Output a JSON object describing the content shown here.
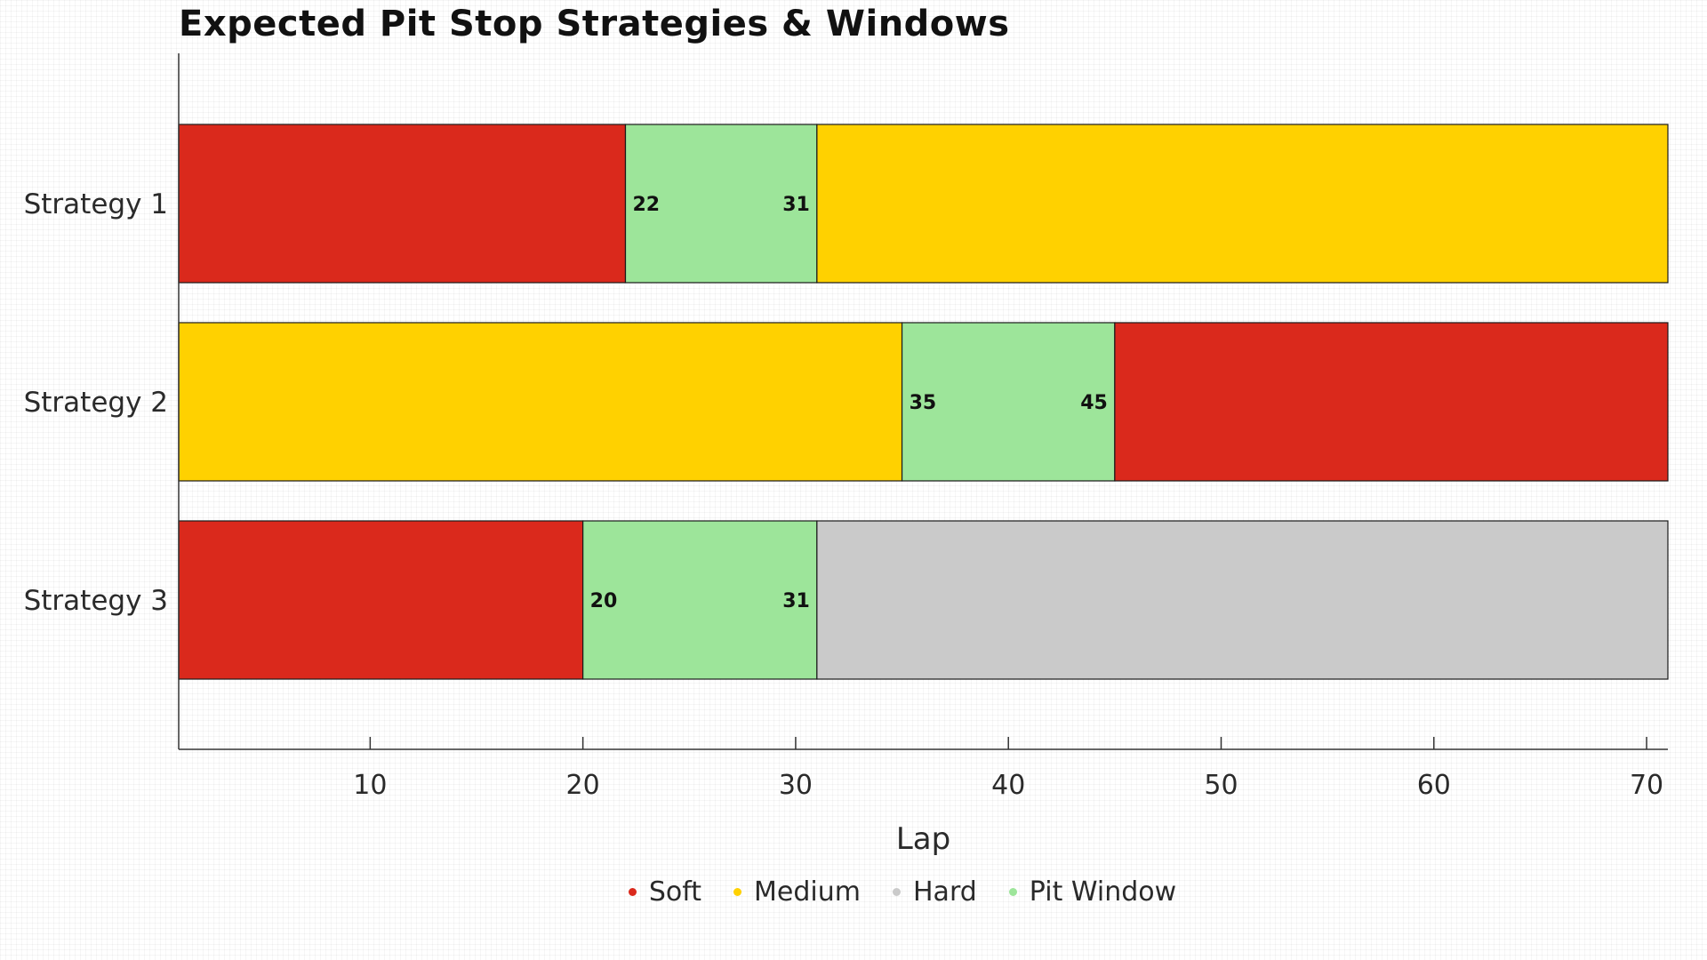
{
  "chart_data": {
    "type": "bar",
    "orientation": "horizontal",
    "stacked": true,
    "title": "Expected Pit Stop Strategies & Windows",
    "xlabel": "Lap",
    "ylabel": "",
    "xlim": [
      1,
      71
    ],
    "xticks": [
      10,
      20,
      30,
      40,
      50,
      60,
      70
    ],
    "categories": [
      "Strategy 1",
      "Strategy 2",
      "Strategy 3"
    ],
    "strategies": [
      {
        "name": "Strategy 1",
        "segments": [
          {
            "compound": "Soft",
            "start": 1,
            "end": 22
          },
          {
            "compound": "Pit Window",
            "start": 22,
            "end": 31,
            "start_label": "22",
            "end_label": "31"
          },
          {
            "compound": "Medium",
            "start": 31,
            "end": 71
          }
        ]
      },
      {
        "name": "Strategy 2",
        "segments": [
          {
            "compound": "Medium",
            "start": 1,
            "end": 35
          },
          {
            "compound": "Pit Window",
            "start": 35,
            "end": 45,
            "start_label": "35",
            "end_label": "45"
          },
          {
            "compound": "Soft",
            "start": 45,
            "end": 71
          }
        ]
      },
      {
        "name": "Strategy 3",
        "segments": [
          {
            "compound": "Soft",
            "start": 1,
            "end": 20
          },
          {
            "compound": "Pit Window",
            "start": 20,
            "end": 31,
            "start_label": "20",
            "end_label": "31"
          },
          {
            "compound": "Hard",
            "start": 31,
            "end": 71
          }
        ]
      }
    ],
    "legend": {
      "placement": "bottom-center",
      "entries": [
        {
          "name": "Soft",
          "color": "#da291c"
        },
        {
          "name": "Medium",
          "color": "#ffd100"
        },
        {
          "name": "Hard",
          "color": "#cacaca"
        },
        {
          "name": "Pit Window",
          "color": "#9de59a"
        }
      ]
    },
    "colors": {
      "Soft": "#da291c",
      "Medium": "#ffd100",
      "Hard": "#cacaca",
      "Pit Window": "#9de59a"
    },
    "grid": false
  }
}
